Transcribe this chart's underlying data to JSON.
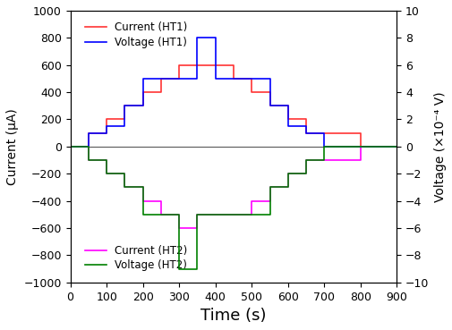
{
  "title_left": "Current (μA)",
  "title_right": "Voltage (×10⁻⁴ V)",
  "xlabel": "Time (s)",
  "xlim": [
    0,
    900
  ],
  "ylim_left": [
    -1000,
    1000
  ],
  "ylim_right": [
    -10,
    10
  ],
  "xticks": [
    0,
    100,
    200,
    300,
    400,
    500,
    600,
    700,
    800,
    900
  ],
  "yticks_left": [
    -1000,
    -800,
    -600,
    -400,
    -200,
    0,
    200,
    400,
    600,
    800,
    1000
  ],
  "yticks_right": [
    -10,
    -8,
    -6,
    -4,
    -2,
    0,
    2,
    4,
    6,
    8,
    10
  ],
  "current_ht1": {
    "color": "#ff3333",
    "label": "Current (HT1)",
    "x": [
      0,
      50,
      50,
      100,
      100,
      150,
      150,
      200,
      200,
      250,
      250,
      300,
      300,
      350,
      350,
      400,
      400,
      450,
      450,
      500,
      500,
      550,
      550,
      600,
      600,
      650,
      650,
      700,
      700,
      750,
      750,
      800,
      800,
      850,
      850,
      900
    ],
    "y": [
      0,
      0,
      100,
      100,
      200,
      200,
      300,
      300,
      400,
      400,
      500,
      500,
      600,
      600,
      600,
      600,
      600,
      600,
      500,
      500,
      400,
      400,
      300,
      300,
      200,
      200,
      100,
      100,
      100,
      100,
      100,
      100,
      0,
      0,
      0,
      0
    ]
  },
  "voltage_ht1": {
    "color": "#0000ff",
    "label": "Voltage (HT1)",
    "x": [
      0,
      50,
      50,
      100,
      100,
      150,
      150,
      200,
      200,
      250,
      250,
      300,
      300,
      350,
      350,
      400,
      400,
      450,
      450,
      500,
      500,
      550,
      550,
      600,
      600,
      650,
      650,
      700,
      700,
      750,
      750,
      800,
      800,
      850,
      850,
      900
    ],
    "y": [
      0,
      0,
      1,
      1,
      1.5,
      1.5,
      3,
      3,
      5,
      5,
      5,
      5,
      5,
      5,
      8,
      8,
      5,
      5,
      5,
      5,
      5,
      5,
      3,
      3,
      1.5,
      1.5,
      1,
      1,
      0,
      0,
      0,
      0,
      0,
      0,
      0,
      0
    ]
  },
  "current_ht2": {
    "color": "#ff00ff",
    "label": "Current (HT2)",
    "x": [
      0,
      50,
      50,
      100,
      100,
      150,
      150,
      200,
      200,
      250,
      250,
      300,
      300,
      350,
      350,
      400,
      400,
      450,
      450,
      500,
      500,
      550,
      550,
      600,
      600,
      650,
      650,
      700,
      700,
      750,
      750,
      800,
      800,
      850,
      850,
      900
    ],
    "y": [
      0,
      0,
      -100,
      -100,
      -200,
      -200,
      -300,
      -300,
      -400,
      -400,
      -500,
      -500,
      -600,
      -600,
      -500,
      -500,
      -500,
      -500,
      -500,
      -500,
      -400,
      -400,
      -300,
      -300,
      -200,
      -200,
      -100,
      -100,
      -100,
      -100,
      -100,
      -100,
      0,
      0,
      0,
      0
    ]
  },
  "voltage_ht2": {
    "color": "#008000",
    "label": "Voltage (HT2)",
    "x": [
      0,
      50,
      50,
      100,
      100,
      150,
      150,
      200,
      200,
      250,
      250,
      300,
      300,
      350,
      350,
      400,
      400,
      450,
      450,
      500,
      500,
      550,
      550,
      600,
      600,
      650,
      650,
      700,
      700,
      750,
      750,
      800,
      800,
      850,
      850,
      900
    ],
    "y": [
      0,
      0,
      -1,
      -1,
      -2,
      -2,
      -3,
      -3,
      -5,
      -5,
      -5,
      -5,
      -9,
      -9,
      -5,
      -5,
      -5,
      -5,
      -5,
      -5,
      -5,
      -5,
      -3,
      -3,
      -2,
      -2,
      -1,
      -1,
      0,
      0,
      0,
      0,
      0,
      0,
      0,
      0
    ]
  }
}
